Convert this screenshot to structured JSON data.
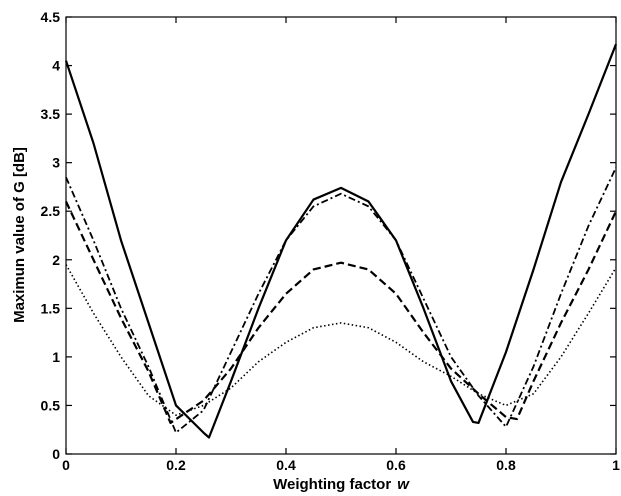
{
  "chart_data": {
    "type": "line",
    "title": "",
    "xlabel": "Weighting factor",
    "xlabel_var": "w",
    "ylabel": "Maximun value of G [dB]",
    "xlim": [
      0,
      1
    ],
    "ylim": [
      0,
      4.5
    ],
    "x_ticks": [
      0,
      0.2,
      0.4,
      0.6,
      0.8,
      1
    ],
    "x_tick_labels": [
      "0",
      "0.2",
      "0.4",
      "0.6",
      "0.8",
      "1"
    ],
    "y_ticks": [
      0,
      0.5,
      1,
      1.5,
      2,
      2.5,
      3,
      3.5,
      4,
      4.5
    ],
    "y_tick_labels": [
      "0",
      "0.5",
      "1",
      "1.5",
      "2",
      "2.5",
      "3",
      "3.5",
      "4",
      "4.5"
    ],
    "grid": false,
    "legend": "none",
    "series": [
      {
        "style": "solid",
        "x": [
          0,
          0.05,
          0.1,
          0.15,
          0.2,
          0.25,
          0.26,
          0.3,
          0.35,
          0.4,
          0.45,
          0.5,
          0.55,
          0.6,
          0.65,
          0.7,
          0.74,
          0.75,
          0.8,
          0.85,
          0.9,
          0.95,
          1
        ],
        "y": [
          4.05,
          3.2,
          2.2,
          1.35,
          0.5,
          0.22,
          0.17,
          0.75,
          1.5,
          2.2,
          2.62,
          2.74,
          2.6,
          2.2,
          1.5,
          0.75,
          0.33,
          0.32,
          1.05,
          1.9,
          2.8,
          3.5,
          4.22
        ]
      },
      {
        "style": "dash-dot",
        "x": [
          0,
          0.05,
          0.1,
          0.15,
          0.2,
          0.25,
          0.3,
          0.35,
          0.4,
          0.45,
          0.5,
          0.55,
          0.6,
          0.65,
          0.7,
          0.75,
          0.8,
          0.85,
          0.9,
          0.95,
          1
        ],
        "y": [
          2.85,
          2.2,
          1.5,
          0.9,
          0.22,
          0.45,
          1.05,
          1.65,
          2.2,
          2.55,
          2.68,
          2.55,
          2.2,
          1.6,
          1.0,
          0.6,
          0.28,
          0.9,
          1.65,
          2.35,
          2.95
        ]
      },
      {
        "style": "dashed",
        "x": [
          0,
          0.05,
          0.1,
          0.15,
          0.19,
          0.25,
          0.3,
          0.35,
          0.4,
          0.45,
          0.5,
          0.55,
          0.6,
          0.65,
          0.7,
          0.75,
          0.8,
          0.82,
          0.85,
          0.9,
          0.95,
          1
        ],
        "y": [
          2.6,
          2.0,
          1.4,
          0.85,
          0.32,
          0.55,
          0.88,
          1.3,
          1.65,
          1.9,
          1.97,
          1.9,
          1.65,
          1.25,
          0.88,
          0.62,
          0.38,
          0.36,
          0.75,
          1.35,
          1.9,
          2.5
        ]
      },
      {
        "style": "dotted",
        "x": [
          0,
          0.05,
          0.1,
          0.15,
          0.2,
          0.25,
          0.3,
          0.35,
          0.4,
          0.45,
          0.5,
          0.55,
          0.6,
          0.65,
          0.7,
          0.75,
          0.8,
          0.85,
          0.9,
          0.95,
          1
        ],
        "y": [
          1.95,
          1.45,
          1.0,
          0.6,
          0.4,
          0.5,
          0.68,
          0.95,
          1.15,
          1.3,
          1.35,
          1.3,
          1.15,
          0.95,
          0.8,
          0.62,
          0.5,
          0.62,
          1.0,
          1.45,
          1.92
        ]
      }
    ]
  }
}
